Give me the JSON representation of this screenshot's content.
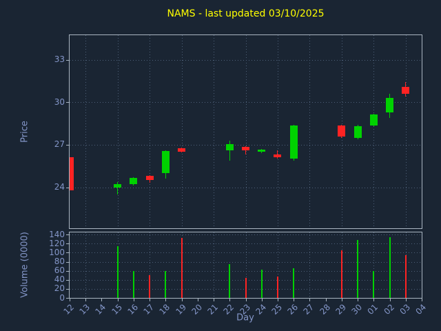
{
  "title": "NAMS - last updated 03/10/2025",
  "colors": {
    "background": "#1a2533",
    "title": "#ffff00",
    "label": "#8496c8",
    "spine": "#aab6c2",
    "grid": "#4f617a",
    "up": "#00d200",
    "down": "#ff2323"
  },
  "chart_data": [
    {
      "type": "candlestick",
      "panel": "price",
      "ylabel": "Price",
      "ylim": [
        21.1,
        34.75
      ],
      "yticks": [
        24,
        27,
        30,
        33
      ],
      "grid": true,
      "categories": [
        "12",
        "13",
        "14",
        "15",
        "16",
        "17",
        "18",
        "19",
        "20",
        "21",
        "22",
        "23",
        "24",
        "25",
        "26",
        "27",
        "28",
        "29",
        "30",
        "01",
        "02",
        "03",
        "04"
      ],
      "series": [
        {
          "day": "12",
          "open": 26.1,
          "high": 26.1,
          "low": 23.8,
          "close": 23.8
        },
        {
          "day": "15",
          "open": 24.0,
          "high": 24.35,
          "low": 23.5,
          "close": 24.2
        },
        {
          "day": "16",
          "open": 24.2,
          "high": 24.7,
          "low": 24.1,
          "close": 24.65
        },
        {
          "day": "17",
          "open": 24.8,
          "high": 24.85,
          "low": 24.3,
          "close": 24.5
        },
        {
          "day": "18",
          "open": 25.0,
          "high": 26.6,
          "low": 24.6,
          "close": 26.55
        },
        {
          "day": "19",
          "open": 26.75,
          "high": 26.8,
          "low": 26.45,
          "close": 26.5
        },
        {
          "day": "22",
          "open": 26.6,
          "high": 27.3,
          "low": 25.9,
          "close": 27.05
        },
        {
          "day": "23",
          "open": 26.85,
          "high": 26.9,
          "low": 26.3,
          "close": 26.6
        },
        {
          "day": "24",
          "open": 26.5,
          "high": 26.7,
          "low": 26.4,
          "close": 26.65
        },
        {
          "day": "25",
          "open": 26.3,
          "high": 26.6,
          "low": 26.0,
          "close": 26.1
        },
        {
          "day": "26",
          "open": 26.0,
          "high": 28.4,
          "low": 25.9,
          "close": 28.35
        },
        {
          "day": "29",
          "open": 28.35,
          "high": 28.4,
          "low": 27.5,
          "close": 27.6
        },
        {
          "day": "30",
          "open": 27.5,
          "high": 28.4,
          "low": 27.4,
          "close": 28.3
        },
        {
          "day": "01",
          "open": 28.35,
          "high": 29.2,
          "low": 28.3,
          "close": 29.15
        },
        {
          "day": "02",
          "open": 29.3,
          "high": 30.6,
          "low": 28.9,
          "close": 30.3
        },
        {
          "day": "03",
          "open": 31.1,
          "high": 31.45,
          "low": 30.4,
          "close": 30.6
        }
      ]
    },
    {
      "type": "bar",
      "panel": "volume",
      "ylabel": "Volume (0000)",
      "xlabel": "Day",
      "ylim": [
        0,
        145
      ],
      "yticks": [
        0,
        20,
        40,
        60,
        80,
        100,
        120,
        140
      ],
      "grid": true,
      "series": [
        {
          "day": "15",
          "value": 115,
          "direction": "up"
        },
        {
          "day": "16",
          "value": 60,
          "direction": "up"
        },
        {
          "day": "17",
          "value": 50,
          "direction": "down"
        },
        {
          "day": "18",
          "value": 60,
          "direction": "up"
        },
        {
          "day": "19",
          "value": 133,
          "direction": "down"
        },
        {
          "day": "22",
          "value": 75,
          "direction": "up"
        },
        {
          "day": "23",
          "value": 45,
          "direction": "down"
        },
        {
          "day": "24",
          "value": 62,
          "direction": "up"
        },
        {
          "day": "25",
          "value": 48,
          "direction": "down"
        },
        {
          "day": "26",
          "value": 66,
          "direction": "up"
        },
        {
          "day": "29",
          "value": 105,
          "direction": "down"
        },
        {
          "day": "30",
          "value": 128,
          "direction": "up"
        },
        {
          "day": "01",
          "value": 60,
          "direction": "up"
        },
        {
          "day": "02",
          "value": 135,
          "direction": "up"
        },
        {
          "day": "03",
          "value": 95,
          "direction": "down"
        }
      ]
    }
  ]
}
